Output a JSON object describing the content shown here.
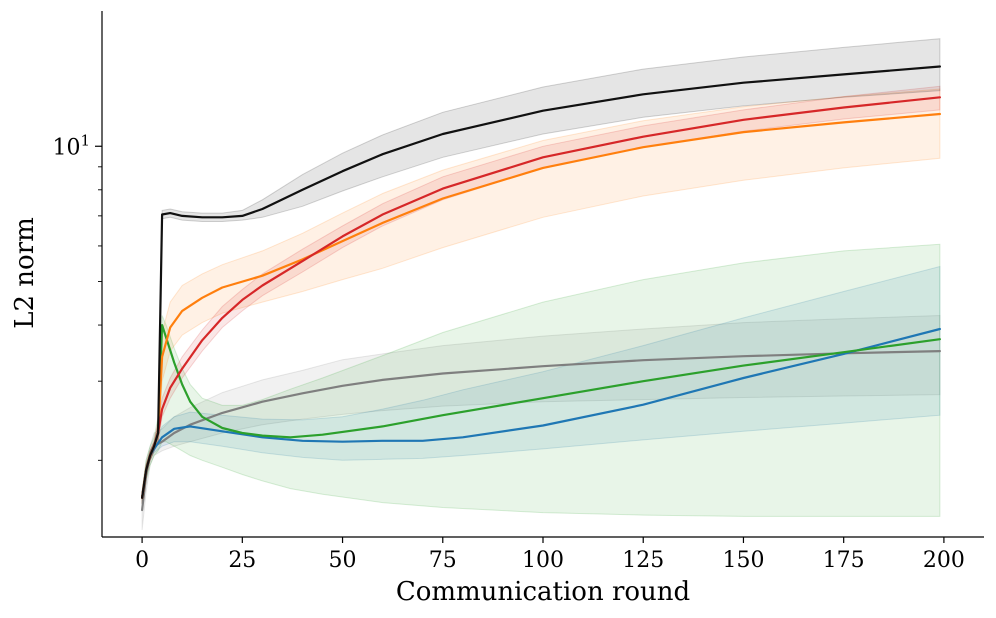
{
  "chart_data": {
    "type": "line",
    "title": "",
    "xlabel": "Communication round",
    "ylabel": "L2 norm",
    "yscale": "log",
    "xlim": [
      -10,
      210
    ],
    "ylim": [
      1.35,
      20.0
    ],
    "x_ticks": [
      0,
      25,
      50,
      75,
      100,
      125,
      150,
      175,
      200
    ],
    "y_major_ticks": [
      10
    ],
    "y_major_tick_labels": [
      "10^1"
    ],
    "y_minor_ticks": [
      2,
      3,
      4,
      5,
      6,
      7,
      8,
      9
    ],
    "grid": false,
    "legend": "none",
    "series": [
      {
        "name": "gray",
        "color": "#7f7f7f",
        "x": [
          0,
          1,
          2,
          3,
          5,
          8,
          12,
          20,
          30,
          40,
          50,
          60,
          75,
          100,
          125,
          150,
          175,
          199
        ],
        "mean": [
          1.55,
          1.85,
          2.05,
          2.15,
          2.2,
          2.3,
          2.4,
          2.55,
          2.7,
          2.82,
          2.93,
          3.02,
          3.12,
          3.24,
          3.34,
          3.41,
          3.46,
          3.5
        ],
        "lower": [
          1.4,
          1.7,
          1.95,
          2.05,
          2.1,
          2.15,
          2.2,
          2.3,
          2.4,
          2.47,
          2.53,
          2.58,
          2.64,
          2.7,
          2.73,
          2.76,
          2.78,
          2.8
        ],
        "upper": [
          1.7,
          2.0,
          2.15,
          2.3,
          2.35,
          2.5,
          2.62,
          2.83,
          3.02,
          3.17,
          3.35,
          3.45,
          3.6,
          3.78,
          3.92,
          4.05,
          4.13,
          4.2
        ]
      },
      {
        "name": "blue",
        "color": "#1f77b4",
        "x": [
          0,
          1,
          2,
          3,
          5,
          8,
          12,
          20,
          30,
          40,
          50,
          60,
          70,
          80,
          100,
          125,
          150,
          175,
          199
        ],
        "mean": [
          1.65,
          1.9,
          2.05,
          2.12,
          2.25,
          2.35,
          2.38,
          2.32,
          2.25,
          2.21,
          2.2,
          2.21,
          2.21,
          2.25,
          2.39,
          2.66,
          3.05,
          3.45,
          3.92
        ],
        "lower": [
          1.6,
          1.85,
          2.0,
          2.08,
          2.15,
          2.2,
          2.2,
          2.15,
          2.08,
          2.03,
          2.0,
          2.01,
          2.02,
          2.05,
          2.12,
          2.22,
          2.32,
          2.42,
          2.52
        ],
        "upper": [
          1.7,
          1.95,
          2.1,
          2.16,
          2.38,
          2.5,
          2.56,
          2.52,
          2.47,
          2.46,
          2.5,
          2.6,
          2.72,
          2.87,
          3.15,
          3.6,
          4.15,
          4.75,
          5.4
        ]
      },
      {
        "name": "green",
        "color": "#2ca02c",
        "x": [
          0,
          1,
          2,
          3,
          4,
          5,
          6,
          8,
          10,
          12,
          15,
          20,
          25,
          30,
          37,
          45,
          60,
          75,
          100,
          125,
          150,
          175,
          199
        ],
        "mean": [
          1.65,
          1.9,
          2.05,
          2.15,
          2.3,
          4.0,
          3.75,
          3.3,
          2.95,
          2.7,
          2.5,
          2.36,
          2.3,
          2.27,
          2.25,
          2.28,
          2.38,
          2.52,
          2.75,
          3.0,
          3.25,
          3.48,
          3.72
        ],
        "lower": [
          1.6,
          1.8,
          1.95,
          2.05,
          2.1,
          2.2,
          2.2,
          2.15,
          2.1,
          2.05,
          2.0,
          1.93,
          1.86,
          1.8,
          1.73,
          1.68,
          1.61,
          1.57,
          1.53,
          1.51,
          1.5,
          1.5,
          1.5
        ],
        "upper": [
          1.7,
          2.0,
          2.15,
          2.25,
          2.5,
          4.2,
          4.0,
          3.55,
          3.2,
          2.95,
          2.75,
          2.65,
          2.65,
          2.73,
          2.88,
          3.05,
          3.42,
          3.85,
          4.5,
          5.05,
          5.5,
          5.85,
          6.05
        ]
      },
      {
        "name": "orange",
        "color": "#ff7f0e",
        "x": [
          0,
          1,
          2,
          3,
          4,
          5,
          7,
          10,
          15,
          20,
          30,
          40,
          50,
          60,
          75,
          100,
          125,
          150,
          175,
          199
        ],
        "mean": [
          1.65,
          1.9,
          2.05,
          2.15,
          2.3,
          3.4,
          3.95,
          4.3,
          4.6,
          4.85,
          5.15,
          5.6,
          6.15,
          6.75,
          7.65,
          8.95,
          9.95,
          10.75,
          11.3,
          11.8
        ],
        "lower": [
          1.6,
          1.85,
          2.0,
          2.1,
          2.2,
          3.0,
          3.5,
          3.8,
          4.05,
          4.25,
          4.5,
          4.75,
          5.05,
          5.35,
          5.95,
          6.95,
          7.75,
          8.4,
          8.95,
          9.4
        ],
        "upper": [
          1.7,
          1.95,
          2.1,
          2.2,
          2.4,
          3.85,
          4.5,
          4.9,
          5.2,
          5.45,
          5.85,
          6.4,
          7.1,
          7.85,
          8.85,
          10.3,
          11.4,
          12.25,
          12.9,
          13.4
        ]
      },
      {
        "name": "red",
        "color": "#d62728",
        "x": [
          0,
          1,
          2,
          3,
          4,
          5,
          7,
          10,
          15,
          20,
          25,
          30,
          40,
          50,
          60,
          75,
          100,
          125,
          150,
          175,
          199
        ],
        "mean": [
          1.65,
          1.9,
          2.05,
          2.15,
          2.3,
          2.6,
          2.9,
          3.2,
          3.7,
          4.15,
          4.55,
          4.9,
          5.55,
          6.3,
          7.05,
          8.05,
          9.45,
          10.5,
          11.45,
          12.2,
          12.85
        ],
        "lower": [
          1.6,
          1.85,
          2.0,
          2.1,
          2.2,
          2.5,
          2.75,
          3.05,
          3.5,
          3.95,
          4.3,
          4.65,
          5.25,
          5.95,
          6.65,
          7.6,
          8.95,
          9.95,
          10.8,
          11.5,
          12.05
        ],
        "upper": [
          1.7,
          1.95,
          2.1,
          2.2,
          2.45,
          2.75,
          3.05,
          3.4,
          3.9,
          4.4,
          4.8,
          5.2,
          5.9,
          6.65,
          7.45,
          8.55,
          10.0,
          11.1,
          12.05,
          12.9,
          13.6
        ]
      },
      {
        "name": "black",
        "color": "#111111",
        "x": [
          0,
          1,
          2,
          3,
          4,
          5,
          7,
          10,
          15,
          20,
          25,
          30,
          40,
          50,
          60,
          75,
          100,
          125,
          150,
          175,
          199
        ],
        "mean": [
          1.65,
          1.9,
          2.05,
          2.15,
          2.3,
          7.05,
          7.1,
          7.0,
          6.95,
          6.95,
          7.0,
          7.25,
          8.0,
          8.8,
          9.6,
          10.65,
          12.0,
          13.05,
          13.85,
          14.45,
          15.05
        ],
        "lower": [
          1.6,
          1.85,
          2.0,
          2.1,
          2.2,
          6.9,
          6.95,
          6.85,
          6.8,
          6.8,
          6.85,
          6.95,
          7.35,
          7.95,
          8.55,
          9.45,
          10.65,
          11.6,
          12.3,
          12.85,
          13.3
        ],
        "upper": [
          1.7,
          1.95,
          2.1,
          2.2,
          2.4,
          7.2,
          7.25,
          7.15,
          7.1,
          7.1,
          7.2,
          7.6,
          8.65,
          9.65,
          10.6,
          11.9,
          13.55,
          14.85,
          15.8,
          16.6,
          17.35
        ]
      }
    ]
  }
}
